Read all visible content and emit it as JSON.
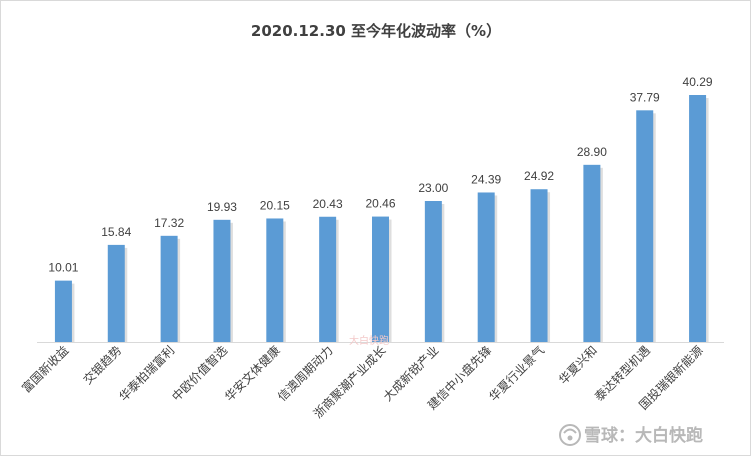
{
  "chart_data": {
    "type": "bar",
    "title": "2020.12.30 至今年化波动率（%）",
    "categories": [
      "富国新收益",
      "交银趋势",
      "华泰柏瑞富利",
      "中欧价值智选",
      "华安文体健康",
      "信澳周期动力",
      "浙商聚潮产业成长",
      "大成新锐产业",
      "建信中小盘先锋",
      "华夏行业景气",
      "华夏兴和",
      "泰达转型机遇",
      "国投瑞银新能源"
    ],
    "values": [
      10.01,
      15.84,
      17.32,
      19.93,
      20.15,
      20.43,
      20.46,
      23.0,
      24.39,
      24.92,
      28.9,
      37.79,
      40.29
    ],
    "value_labels": [
      "10.01",
      "15.84",
      "17.32",
      "19.93",
      "20.15",
      "20.43",
      "20.46",
      "23.00",
      "24.39",
      "24.92",
      "28.90",
      "37.79",
      "40.29"
    ],
    "ylim": [
      0,
      40.29
    ],
    "xlabel": "",
    "ylabel": "",
    "grid": false,
    "bar_color": "#5b9bd5"
  },
  "watermark": {
    "text": "雪球：大白快跑",
    "center_text": "大白快跑"
  }
}
